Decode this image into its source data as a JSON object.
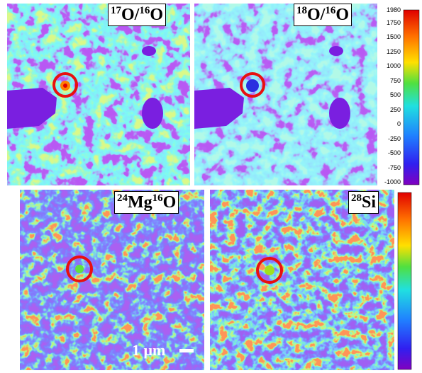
{
  "panels": [
    {
      "label": [
        [
          "17",
          "O/"
        ],
        [
          "16",
          "O"
        ]
      ]
    },
    {
      "label": [
        [
          "18",
          "O/"
        ],
        [
          "16",
          "O"
        ]
      ]
    },
    {
      "label": [
        [
          "24",
          "Mg"
        ],
        [
          "16",
          "O"
        ]
      ]
    },
    {
      "label": [
        [
          "28",
          "Si"
        ]
      ]
    }
  ],
  "colorbar": {
    "ticks": [
      1980,
      1750,
      1500,
      1250,
      1000,
      750,
      500,
      250,
      0,
      -250,
      -500,
      -750,
      -1000
    ]
  },
  "scale_bar": "1 μm"
}
